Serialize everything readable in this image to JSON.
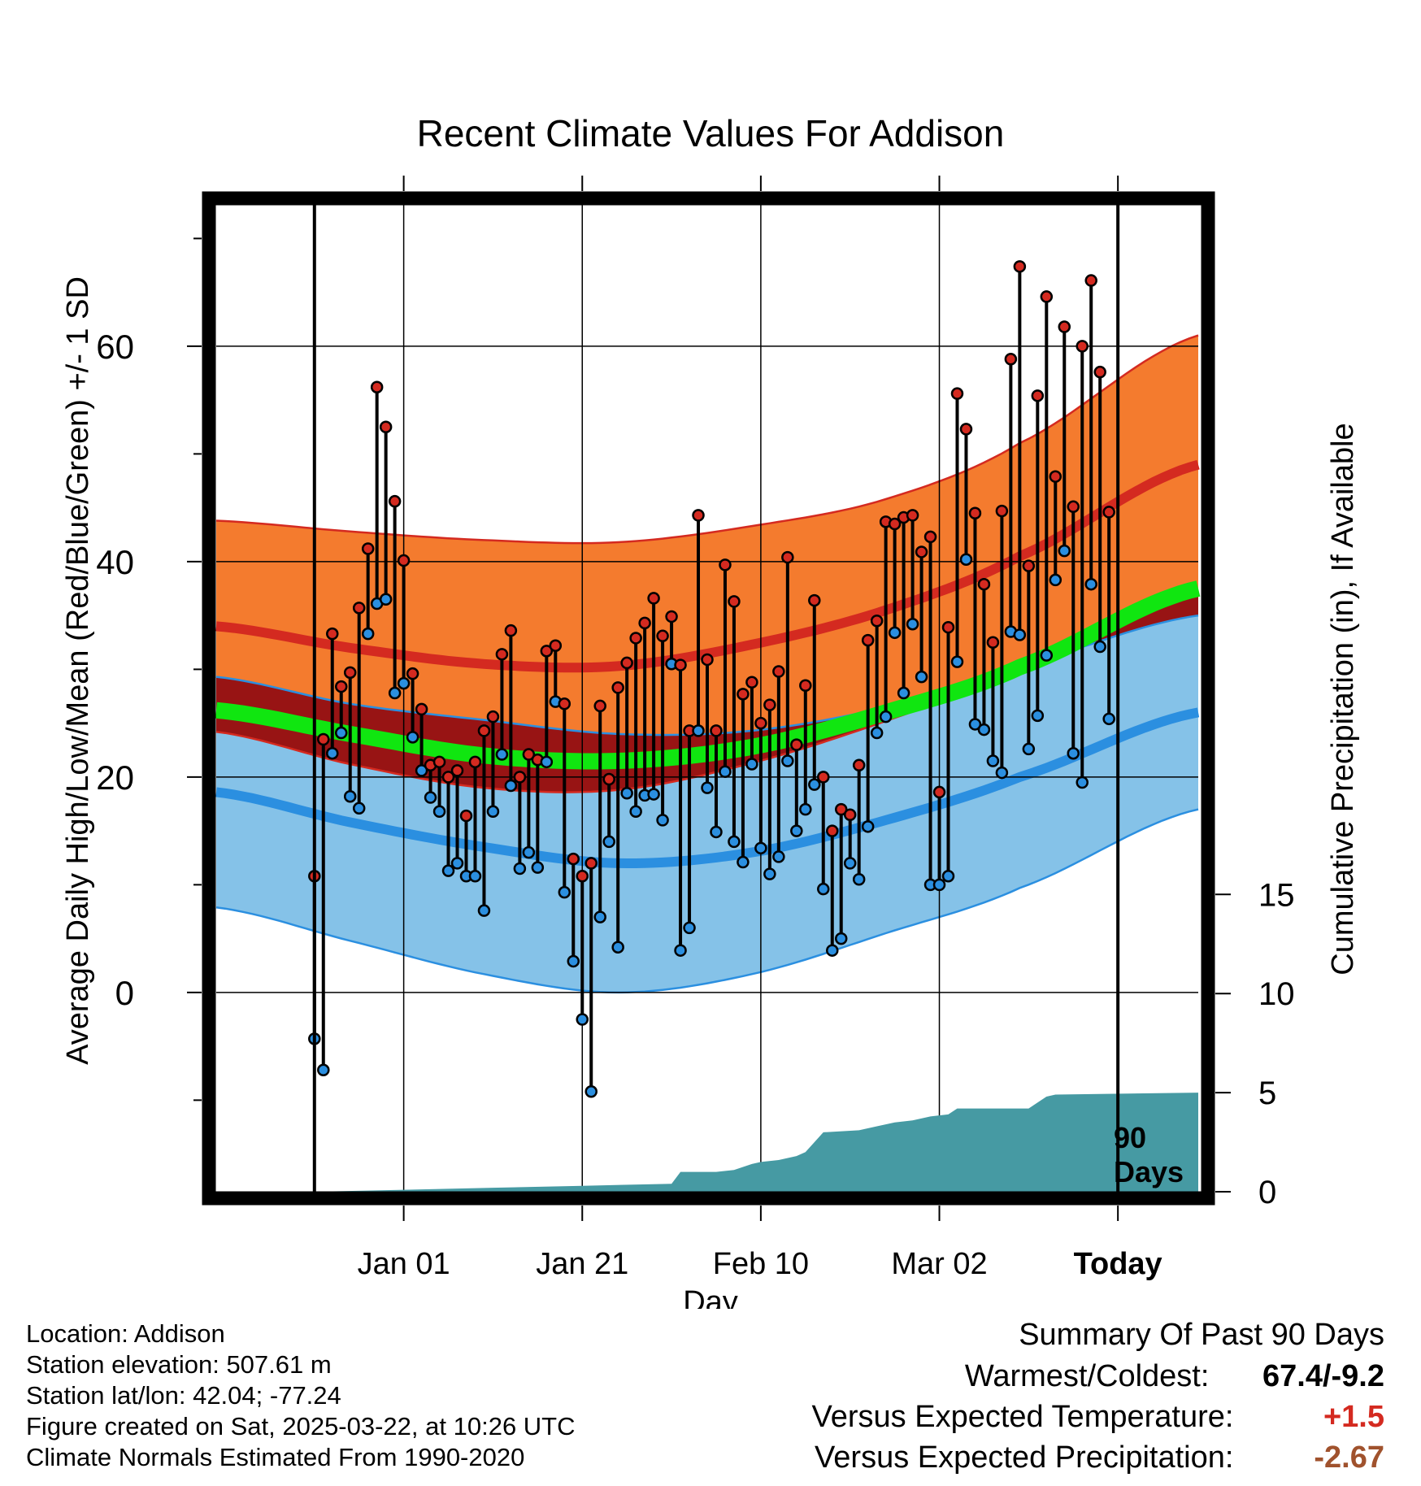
{
  "chart_data": {
    "type": "line",
    "title": "Recent Climate Values For Addison",
    "xlabel": "Day",
    "ylabel": "Average Daily High/Low/Mean (Red/Blue/Green) +/- 1 SD",
    "ylabel_right": "Cumulative Precipitation (in), If Available",
    "x_range_days": [
      -101,
      9
    ],
    "ylim": [
      -18.5,
      73.5
    ],
    "precip_ylim": [
      0,
      50
    ],
    "x_ticks": [
      {
        "day": -80,
        "label": "Jan 01"
      },
      {
        "day": -60,
        "label": "Jan 21"
      },
      {
        "day": -40,
        "label": "Feb 10"
      },
      {
        "day": -20,
        "label": "Mar 02"
      },
      {
        "day": 0,
        "label": "Today"
      }
    ],
    "y_ticks": [
      0,
      20,
      40,
      60
    ],
    "precip_ticks": [
      0,
      5,
      10,
      15
    ],
    "window_label": "90 Days",
    "normals": {
      "anchor_days": [
        -101,
        -86,
        -71,
        -56,
        -41,
        -26,
        -11,
        9
      ],
      "high_mean": [
        34.0,
        32.0,
        30.5,
        30.3,
        32.3,
        35.5,
        40.5,
        49.0
      ],
      "high_sd": [
        9.8,
        10.8,
        11.5,
        11.5,
        11.0,
        10.3,
        10.5,
        12.0
      ],
      "low_mean": [
        18.6,
        15.8,
        13.5,
        12.0,
        13.0,
        16.0,
        20.0,
        26.0
      ],
      "low_sd": [
        10.7,
        11.0,
        11.8,
        12.0,
        11.3,
        10.5,
        10.3,
        9.0
      ],
      "mean": [
        26.2,
        24.0,
        22.0,
        21.5,
        22.8,
        26.0,
        30.2,
        37.5
      ]
    },
    "series": [
      {
        "name": "Daily High",
        "color": "#d42a20",
        "values": [
          10.8,
          23.5,
          33.3,
          28.4,
          29.7,
          35.7,
          41.2,
          56.2,
          52.5,
          45.6,
          40.1,
          29.6,
          26.3,
          21.1,
          21.4,
          20.0,
          20.6,
          16.4,
          21.4,
          24.3,
          25.6,
          31.4,
          33.6,
          20.0,
          22.1,
          21.6,
          31.7,
          32.2,
          26.8,
          12.4,
          10.8,
          12.0,
          26.6,
          19.8,
          28.3,
          30.6,
          32.9,
          34.3,
          36.6,
          33.1,
          34.9,
          30.4,
          24.3,
          44.3,
          30.9,
          24.3,
          39.7,
          36.3,
          27.7,
          28.8,
          25.0,
          26.7,
          29.8,
          40.4,
          23.0,
          28.5,
          36.4,
          20.0,
          15.0,
          17.0,
          16.5,
          21.1,
          32.7,
          34.5,
          43.7,
          43.5,
          44.1,
          44.3,
          40.9,
          42.3,
          18.6,
          33.9,
          55.6,
          52.3,
          44.5,
          37.9,
          32.5,
          44.7,
          58.8,
          67.4,
          39.6,
          55.4,
          64.6,
          47.9,
          61.8,
          45.1,
          60.0,
          66.1,
          57.6,
          44.6
        ]
      },
      {
        "name": "Daily Low",
        "color": "#2b8fe0",
        "values": [
          -4.3,
          -7.2,
          22.2,
          24.1,
          18.2,
          17.1,
          33.3,
          36.1,
          36.5,
          27.8,
          28.7,
          23.7,
          20.6,
          18.1,
          16.8,
          11.3,
          12.0,
          10.8,
          10.8,
          7.6,
          16.8,
          22.1,
          19.2,
          11.5,
          13.0,
          11.6,
          21.4,
          27.0,
          9.3,
          2.9,
          -2.5,
          -9.2,
          7.0,
          14.0,
          4.2,
          18.5,
          16.8,
          18.3,
          18.4,
          16.0,
          30.5,
          3.9,
          6.0,
          24.3,
          19.0,
          14.9,
          20.5,
          14.0,
          12.1,
          21.2,
          13.4,
          11.0,
          12.6,
          21.5,
          15.0,
          17.0,
          19.3,
          9.6,
          3.9,
          5.0,
          12.0,
          10.5,
          15.4,
          24.1,
          25.6,
          33.4,
          27.8,
          34.2,
          29.3,
          10.0,
          10.0,
          10.8,
          30.7,
          40.2,
          24.9,
          24.4,
          21.5,
          20.4,
          33.5,
          33.2,
          22.6,
          25.7,
          31.3,
          38.3,
          41.0,
          22.2,
          19.5,
          37.9,
          32.1,
          25.4
        ]
      }
    ],
    "precip_cumulative": {
      "days": [
        -101,
        -90,
        -80,
        -70,
        -60,
        -50,
        -49,
        -45,
        -43,
        -41,
        -40,
        -38,
        -36,
        -35,
        -33,
        -29,
        -27,
        -25,
        -23,
        -21,
        -19,
        -18,
        -16,
        -14,
        -12,
        -10,
        -8,
        -7,
        9
      ],
      "values": [
        0,
        0,
        0.1,
        0.2,
        0.3,
        0.4,
        1.0,
        1.0,
        1.1,
        1.4,
        1.5,
        1.6,
        1.8,
        2.0,
        3.0,
        3.1,
        3.3,
        3.5,
        3.6,
        3.8,
        3.9,
        4.2,
        4.2,
        4.2,
        4.2,
        4.2,
        4.8,
        4.9,
        5.0
      ]
    }
  },
  "meta": {
    "location": "Location: Addison",
    "elevation": "Station elevation: 507.61 m",
    "latlon": "Station lat/lon: 42.04; -77.24",
    "created": "Figure created on Sat, 2025-03-22, at 10:26 UTC",
    "normals": "Climate Normals Estimated From 1990-2020"
  },
  "summary": {
    "heading": "Summary Of Past 90 Days",
    "warmest_label": "Warmest/Coldest:",
    "warmest_value": "67.4/-9.2",
    "temp_label": "Versus Expected Temperature:",
    "temp_value": "+1.5",
    "temp_color": "#d42a20",
    "precip_label": "Versus Expected Precipitation:",
    "precip_value": "-2.67",
    "precip_color": "#a0522d"
  }
}
